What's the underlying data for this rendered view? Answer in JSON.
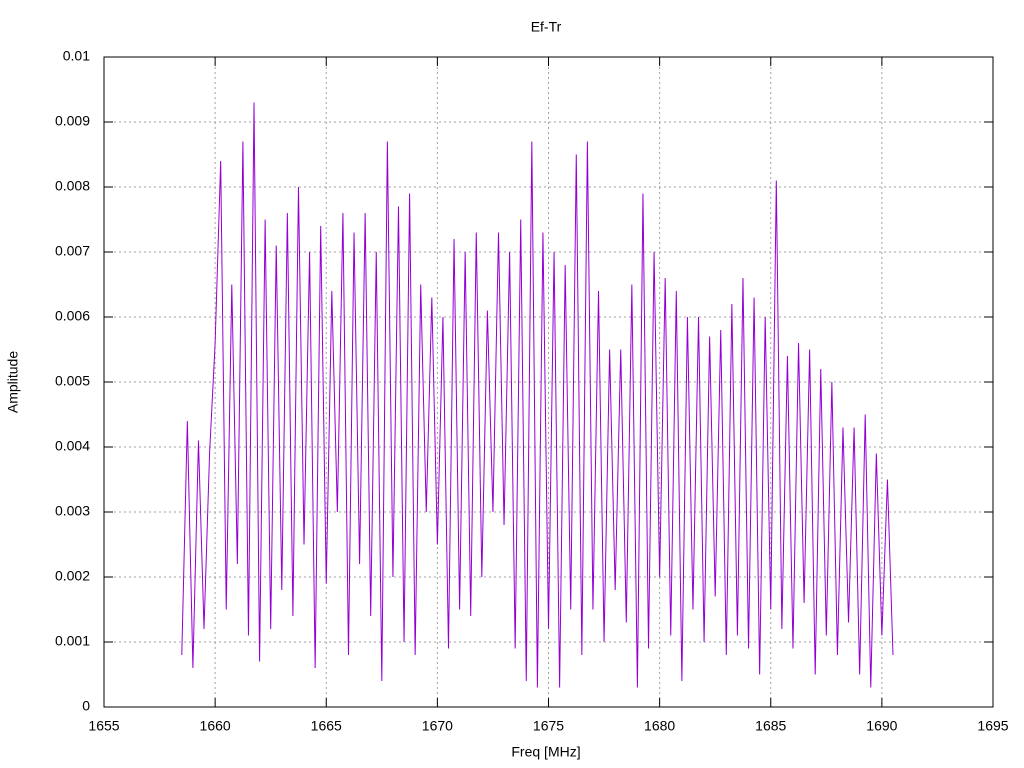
{
  "chart_data": {
    "type": "line",
    "title": "Ef-Tr",
    "x_label": "Freq [MHz]",
    "y_label": "Amplitude",
    "color": "#9400d3",
    "grid": true,
    "xlim": [
      1655,
      1695
    ],
    "xticks": [
      1655,
      1660,
      1665,
      1670,
      1675,
      1680,
      1685,
      1690,
      1695
    ],
    "ylim": [
      0,
      0.01
    ],
    "yticks": [
      0,
      0.001,
      0.002,
      0.003,
      0.004,
      0.005,
      0.006,
      0.007,
      0.008,
      0.009,
      0.01
    ],
    "x": [
      1658.5,
      1658.75,
      1659,
      1659.25,
      1659.5,
      1659.75,
      1660,
      1660.25,
      1660.5,
      1660.75,
      1661,
      1661.25,
      1661.5,
      1661.75,
      1662,
      1662.25,
      1662.5,
      1662.75,
      1663,
      1663.25,
      1663.5,
      1663.75,
      1664,
      1664.25,
      1664.5,
      1664.75,
      1665,
      1665.25,
      1665.5,
      1665.75,
      1666,
      1666.25,
      1666.5,
      1666.75,
      1667,
      1667.25,
      1667.5,
      1667.75,
      1668,
      1668.25,
      1668.5,
      1668.75,
      1669,
      1669.25,
      1669.5,
      1669.75,
      1670,
      1670.25,
      1670.5,
      1670.75,
      1671,
      1671.25,
      1671.5,
      1671.75,
      1672,
      1672.25,
      1672.5,
      1672.75,
      1673,
      1673.25,
      1673.5,
      1673.75,
      1674,
      1674.25,
      1674.5,
      1674.75,
      1675,
      1675.25,
      1675.5,
      1675.75,
      1676,
      1676.25,
      1676.5,
      1676.75,
      1677,
      1677.25,
      1677.5,
      1677.75,
      1678,
      1678.25,
      1678.5,
      1678.75,
      1679,
      1679.25,
      1679.5,
      1679.75,
      1680,
      1680.25,
      1680.5,
      1680.75,
      1681,
      1681.25,
      1681.5,
      1681.75,
      1682,
      1682.25,
      1682.5,
      1682.75,
      1683,
      1683.25,
      1683.5,
      1683.75,
      1684,
      1684.25,
      1684.5,
      1684.75,
      1685,
      1685.25,
      1685.5,
      1685.75,
      1686,
      1686.25,
      1686.5,
      1686.75,
      1687,
      1687.25,
      1687.5,
      1687.75,
      1688,
      1688.25,
      1688.5,
      1688.75,
      1689,
      1689.25,
      1689.5,
      1689.75,
      1690,
      1690.25,
      1690.5
    ],
    "values": [
      0.0008,
      0.0044,
      0.0006,
      0.0041,
      0.0012,
      0.0039,
      0.0056,
      0.0084,
      0.0015,
      0.0065,
      0.0022,
      0.0087,
      0.0011,
      0.0093,
      0.0007,
      0.0075,
      0.0012,
      0.0071,
      0.0018,
      0.0076,
      0.0014,
      0.008,
      0.0025,
      0.007,
      0.0006,
      0.0074,
      0.0019,
      0.0064,
      0.003,
      0.0076,
      0.0008,
      0.0073,
      0.0022,
      0.0076,
      0.0014,
      0.007,
      0.0004,
      0.0087,
      0.002,
      0.0077,
      0.001,
      0.0079,
      0.0008,
      0.0065,
      0.003,
      0.0063,
      0.0025,
      0.006,
      0.0009,
      0.0072,
      0.0015,
      0.007,
      0.0014,
      0.0073,
      0.002,
      0.0061,
      0.003,
      0.0073,
      0.0028,
      0.007,
      0.0009,
      0.0075,
      0.0004,
      0.0087,
      0.0003,
      0.0073,
      0.0012,
      0.007,
      0.0003,
      0.0068,
      0.0015,
      0.0085,
      0.0008,
      0.0087,
      0.0015,
      0.0064,
      0.001,
      0.0055,
      0.0018,
      0.0055,
      0.0013,
      0.0065,
      0.0003,
      0.0079,
      0.0009,
      0.007,
      0.002,
      0.0066,
      0.0011,
      0.0064,
      0.0004,
      0.006,
      0.0015,
      0.006,
      0.001,
      0.0057,
      0.0017,
      0.0058,
      0.0008,
      0.0062,
      0.0011,
      0.0066,
      0.0009,
      0.0063,
      0.0005,
      0.006,
      0.0015,
      0.0081,
      0.0012,
      0.0054,
      0.0009,
      0.0056,
      0.0016,
      0.0055,
      0.0005,
      0.0052,
      0.0011,
      0.005,
      0.0008,
      0.0043,
      0.0013,
      0.0043,
      0.0005,
      0.0045,
      0.0003,
      0.0039,
      0.0011,
      0.0035,
      0.0008
    ]
  }
}
